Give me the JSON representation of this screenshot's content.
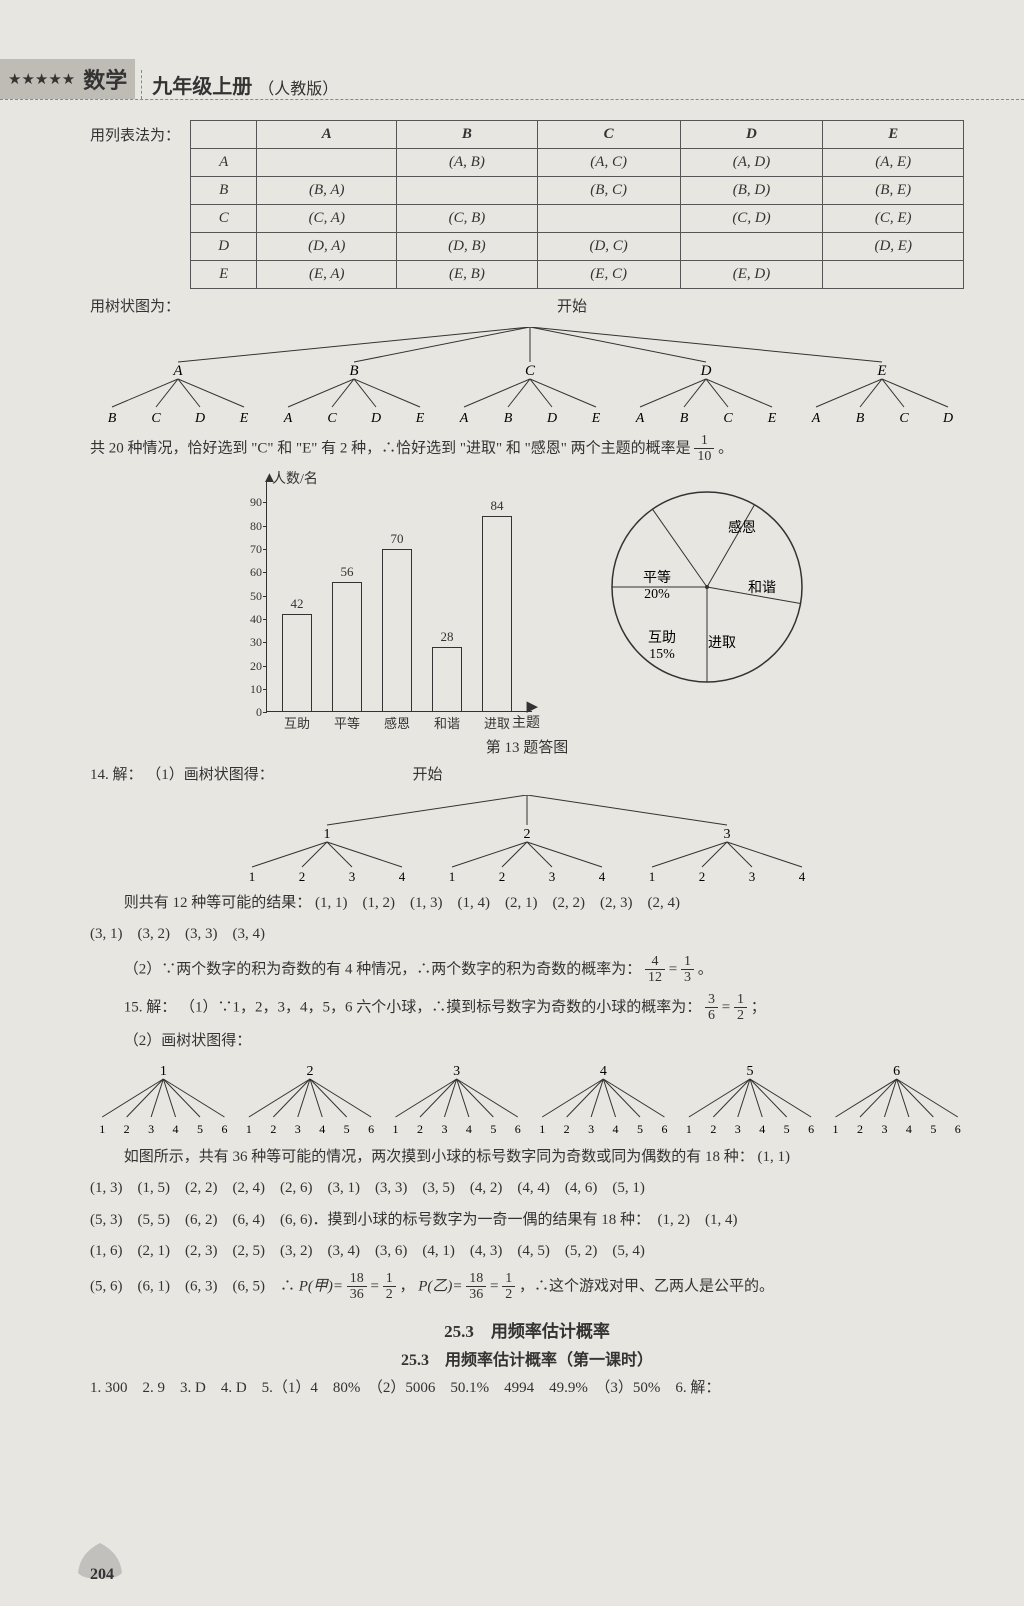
{
  "header": {
    "stars": "★★★★★",
    "subject": "数学",
    "grade": "九年级上册",
    "version": "（人教版）"
  },
  "tableIntro": "用列表法为：",
  "pairs": {
    "cols": [
      "",
      "A",
      "B",
      "C",
      "D",
      "E"
    ],
    "rows": [
      [
        "A",
        "",
        "(A, B)",
        "(A, C)",
        "(A, D)",
        "(A, E)"
      ],
      [
        "B",
        "(B, A)",
        "",
        "(B, C)",
        "(B, D)",
        "(B, E)"
      ],
      [
        "C",
        "(C, A)",
        "(C, B)",
        "",
        "(C, D)",
        "(C, E)"
      ],
      [
        "D",
        "(D, A)",
        "(D, B)",
        "(D, C)",
        "",
        "(D, E)"
      ],
      [
        "E",
        "(E, A)",
        "(E, B)",
        "(E, C)",
        "(E, D)",
        ""
      ]
    ]
  },
  "treeIntro": "用树状图为：",
  "tree1": {
    "root": "开始",
    "level1": [
      "A",
      "B",
      "C",
      "D",
      "E"
    ],
    "children": {
      "A": [
        "B",
        "C",
        "D",
        "E"
      ],
      "B": [
        "A",
        "C",
        "D",
        "E"
      ],
      "C": [
        "A",
        "B",
        "D",
        "E"
      ],
      "D": [
        "A",
        "B",
        "C",
        "E"
      ],
      "E": [
        "A",
        "B",
        "C",
        "D"
      ]
    }
  },
  "line_20": "共 20 种情况，恰好选到 \"C\" 和 \"E\" 有 2 种，∴恰好选到 \"进取\" 和 \"感恩\" 两个主题的概率是",
  "frac_1_10": {
    "n": "1",
    "d": "10"
  },
  "period": "。",
  "bar": {
    "ylabel": "人数/名",
    "xlabel": "主题",
    "cats": [
      "互助",
      "平等",
      "感恩",
      "和谐",
      "进取"
    ],
    "vals": [
      42,
      56,
      70,
      28,
      84
    ],
    "ymax": 90,
    "ystep": 10,
    "color": "#333",
    "bg": "transparent"
  },
  "pie": {
    "labels": [
      "感恩",
      "和谐",
      "进取",
      "互助\n15%",
      "平等\n20%"
    ],
    "colors": [
      "#333"
    ],
    "bg": "#e8e6e0"
  },
  "figCap": "第 13 题答图",
  "q14_label": "14. 解：",
  "q14_1": "（1）画树状图得：",
  "tree2": {
    "root": "开始",
    "level1": [
      "1",
      "2",
      "3"
    ],
    "level2": [
      "1",
      "2",
      "3",
      "4"
    ]
  },
  "q14_res_a": "则共有 12 种等可能的结果：",
  "q14_pairs": "(1, 1)　(1, 2)　(1, 3)　(1, 4)　(2, 1)　(2, 2)　(2, 3)　(2, 4)",
  "q14_pairs2": "(3, 1)　(3, 2)　(3, 3)　(3, 4)",
  "q14_2a": "（2）∵两个数字的积为奇数的有 4 种情况，∴两个数字的积为奇数的概率为：",
  "frac_4_12": {
    "n": "4",
    "d": "12"
  },
  "eq": " = ",
  "frac_1_3": {
    "n": "1",
    "d": "3"
  },
  "q15_label": "15. 解：",
  "q15_1": "（1）∵1，2，3，4，5，6 六个小球，∴摸到标号数字为奇数的小球的概率为：",
  "frac_3_6": {
    "n": "3",
    "d": "6"
  },
  "frac_1_2": {
    "n": "1",
    "d": "2"
  },
  "semi": "；",
  "q15_2": "（2）画树状图得：",
  "tree3": {
    "level1": [
      "1",
      "2",
      "3",
      "4",
      "5",
      "6"
    ],
    "level2": [
      "1",
      "2",
      "3",
      "4",
      "5",
      "6"
    ]
  },
  "q15_res": "如图所示，共有 36 种等可能的情况，两次摸到小球的标号数字同为奇数或同为偶数的有 18 种：",
  "q15_list1": "(1, 1)",
  "q15_list2": "(1, 3)　(1, 5)　(2, 2)　(2, 4)　(2, 6)　(3, 1)　(3, 3)　(3, 5)　(4, 2)　(4, 4)　(4, 6)　(5, 1)",
  "q15_list3": "(5, 3)　(5, 5)　(6, 2)　(6, 4)　(6, 6)．摸到小球的标号数字为一奇一偶的结果有 18 种：　(1, 2)　(1, 4)",
  "q15_list4": "(1, 6)　(2, 1)　(2, 3)　(2, 5)　(3, 2)　(3, 4)　(3, 6)　(4, 1)　(4, 3)　(4, 5)　(5, 2)　(5, 4)",
  "q15_list5": "(5, 6)　(6, 1)　(6, 3)　(6, 5)　∴",
  "p_jia": "P(甲)=",
  "frac_18_36": {
    "n": "18",
    "d": "36"
  },
  "comma": "，",
  "p_yi": "P(乙)=",
  "q15_conc": "，∴这个游戏对甲、乙两人是公平的。",
  "sec_title": "25.3　用频率估计概率",
  "sec_sub": "25.3　用频率估计概率（第一课时）",
  "answers": "1. 300　2. 9　3. D　4. D　5.（1）4　80%　（2）5006　50.1%　4994　49.9%　（3）50%　6. 解：",
  "pageNum": "204"
}
